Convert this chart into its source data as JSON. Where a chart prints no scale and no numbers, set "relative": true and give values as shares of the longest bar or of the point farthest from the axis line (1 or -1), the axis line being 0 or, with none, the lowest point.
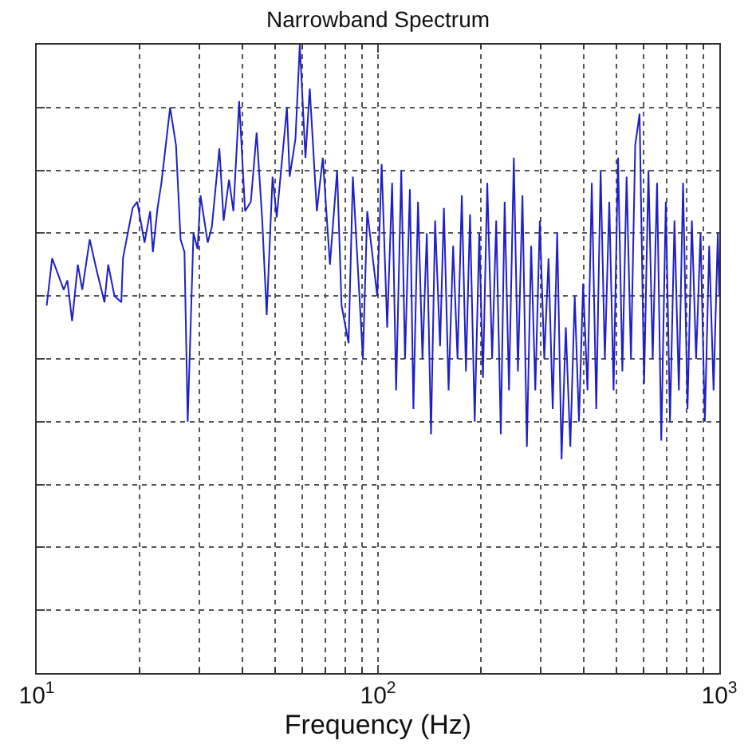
{
  "chart_data": {
    "type": "line",
    "title": "Narrowband Spectrum",
    "xlabel": "Frequency (Hz)",
    "relative": true,
    "log": "x",
    "grid": true,
    "tick_labels": "x",
    "marker": "none",
    "line_style": "solid",
    "xlim": [
      10,
      1000
    ],
    "xticks": [
      {
        "value": 10,
        "label": "10$^{1}$"
      },
      {
        "value": 100,
        "label": "10$^{2}$"
      },
      {
        "value": 1000,
        "label": "10$^{3}$"
      }
    ],
    "series": [
      {
        "color": "#1f1fc8",
        "x": [
          10.7,
          11.1,
          12.0,
          12.3,
          12.7,
          13.2,
          13.6,
          14.3,
          15.0,
          15.8,
          16.2,
          16.9,
          17.7,
          17.9,
          19.1,
          19.7,
          20.7,
          21.5,
          21.9,
          22.6,
          23.2,
          24.6,
          25.6,
          26.4,
          27.1,
          27.7,
          28.8,
          29.6,
          30.2,
          31.7,
          32.6,
          34.3,
          35.3,
          36.6,
          37.7,
          39.2,
          40.8,
          42.4,
          44.1,
          45.8,
          47.2,
          49.1,
          50.5,
          52.0,
          54.1,
          55.1,
          57.3,
          59.0,
          61.3,
          63.1,
          66.2,
          68.9,
          72.3,
          75.9,
          78.2,
          82.0,
          84.4,
          90.3,
          93.0,
          99.5,
          102.5,
          106.4,
          110,
          113,
          117,
          120,
          124,
          127,
          131,
          135,
          139,
          143,
          147,
          152,
          156,
          161,
          166,
          171,
          176,
          181,
          186,
          192,
          198,
          203,
          209,
          216,
          222,
          229,
          235,
          242,
          250,
          257,
          265,
          273,
          281,
          289,
          298,
          307,
          316,
          325,
          335,
          345,
          355,
          366,
          377,
          388,
          399,
          411,
          423,
          436,
          449,
          462,
          476,
          490,
          505,
          520,
          535,
          551,
          567,
          584,
          602,
          620,
          638,
          657,
          676,
          697,
          717,
          739,
          761,
          783,
          807,
          831,
          855,
          881,
          907,
          934,
          962,
          990,
          1000
        ],
        "values": [
          0.585,
          0.66,
          0.61,
          0.625,
          0.56,
          0.65,
          0.61,
          0.69,
          0.64,
          0.59,
          0.65,
          0.6,
          0.59,
          0.66,
          0.74,
          0.75,
          0.685,
          0.735,
          0.67,
          0.74,
          0.78,
          0.9,
          0.84,
          0.69,
          0.67,
          0.4,
          0.7,
          0.675,
          0.76,
          0.685,
          0.71,
          0.835,
          0.72,
          0.785,
          0.735,
          0.91,
          0.735,
          0.75,
          0.86,
          0.72,
          0.57,
          0.79,
          0.725,
          0.8,
          0.9,
          0.79,
          0.85,
          1,
          0.82,
          0.93,
          0.735,
          0.82,
          0.65,
          0.8,
          0.585,
          0.525,
          0.79,
          0.5,
          0.735,
          0.6,
          0.81,
          0.55,
          0.78,
          0.45,
          0.8,
          0.5,
          0.77,
          0.42,
          0.75,
          0.5,
          0.7,
          0.38,
          0.72,
          0.52,
          0.74,
          0.45,
          0.68,
          0.5,
          0.76,
          0.48,
          0.73,
          0.4,
          0.7,
          0.47,
          0.78,
          0.5,
          0.72,
          0.38,
          0.75,
          0.45,
          0.82,
          0.48,
          0.76,
          0.36,
          0.68,
          0.45,
          0.72,
          0.5,
          0.66,
          0.42,
          0.7,
          0.34,
          0.55,
          0.36,
          0.6,
          0.4,
          0.62,
          0.45,
          0.78,
          0.42,
          0.8,
          0.5,
          0.75,
          0.45,
          0.82,
          0.48,
          0.79,
          0.5,
          0.84,
          0.89,
          0.46,
          0.8,
          0.5,
          0.78,
          0.37,
          0.75,
          0.4,
          0.72,
          0.45,
          0.78,
          0.42,
          0.72,
          0.5,
          0.7,
          0.4,
          0.68,
          0.45,
          0.7,
          0.6
        ]
      }
    ]
  }
}
